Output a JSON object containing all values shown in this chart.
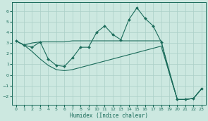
{
  "xlabel": "Humidex (Indice chaleur)",
  "background_color": "#cce8e0",
  "grid_color": "#aacfc7",
  "line_color": "#1a6b5a",
  "xlim": [
    -0.5,
    23.5
  ],
  "ylim": [
    -2.8,
    6.8
  ],
  "xticks": [
    0,
    1,
    2,
    3,
    4,
    5,
    6,
    7,
    8,
    9,
    10,
    11,
    12,
    13,
    14,
    15,
    16,
    17,
    18,
    19,
    20,
    21,
    22,
    23
  ],
  "yticks": [
    -2,
    -1,
    0,
    1,
    2,
    3,
    4,
    5,
    6
  ],
  "main_x": [
    0,
    1,
    2,
    3,
    4,
    5,
    6,
    7,
    8,
    9,
    10,
    11,
    12,
    13,
    14,
    15,
    16,
    17,
    18,
    20,
    21,
    22,
    23
  ],
  "main_y": [
    3.2,
    2.8,
    2.6,
    3.1,
    1.5,
    0.9,
    0.8,
    1.6,
    2.6,
    2.6,
    4.0,
    4.6,
    3.8,
    3.3,
    5.2,
    6.3,
    5.3,
    4.6,
    3.1,
    -2.3,
    -2.3,
    -2.2,
    -1.3
  ],
  "upper_x": [
    0,
    1,
    2,
    3,
    4,
    5,
    6,
    7,
    8,
    9,
    10,
    11,
    12,
    13,
    14,
    15,
    16,
    17,
    18,
    19,
    20,
    21,
    22,
    23
  ],
  "upper_y": [
    3.2,
    2.8,
    3.0,
    3.1,
    3.1,
    3.1,
    3.1,
    3.2,
    3.2,
    3.2,
    3.2,
    3.2,
    3.2,
    3.2,
    3.2,
    3.2,
    3.2,
    3.2,
    3.2,
    0.2,
    -2.3,
    -2.3,
    -2.2,
    -1.3
  ],
  "lower_x": [
    0,
    1,
    2,
    3,
    4,
    5,
    6,
    7,
    8,
    9,
    10,
    11,
    12,
    13,
    14,
    15,
    16,
    17,
    18,
    19,
    20,
    21,
    22,
    23
  ],
  "lower_y": [
    3.2,
    2.8,
    2.2,
    1.5,
    0.9,
    0.5,
    0.4,
    0.5,
    0.7,
    0.9,
    1.1,
    1.3,
    1.5,
    1.7,
    1.9,
    2.1,
    2.3,
    2.5,
    2.7,
    0.2,
    -2.3,
    -2.3,
    -2.2,
    -1.3
  ]
}
